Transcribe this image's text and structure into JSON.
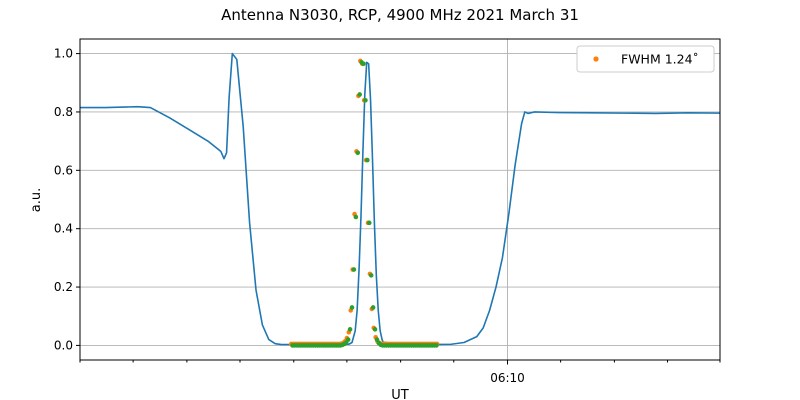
{
  "chart_data": {
    "type": "line",
    "title": "Antenna N3030, RCP, 4900 MHz 2021 March 31",
    "xlabel": "UT",
    "ylabel": "a.u.",
    "xlim": [
      0,
      100
    ],
    "ylim": [
      -0.05,
      1.05
    ],
    "yticks": [
      0.0,
      0.2,
      0.4,
      0.6,
      0.8,
      1.0
    ],
    "ytick_labels": [
      "0.0",
      "0.2",
      "0.4",
      "0.6",
      "0.8",
      "1.0"
    ],
    "xticks_major": [
      {
        "x": 66.8,
        "label": "06:10"
      }
    ],
    "xticks_minor": [
      0,
      8.3,
      16.7,
      25,
      33.4,
      41.7,
      50.1,
      58.4,
      75.1,
      83.5,
      91.8,
      100
    ],
    "grid": true,
    "legend": {
      "position": "top-right",
      "entries": [
        "FWHM 1.24$^\\circ$"
      ]
    },
    "legend_display": [
      "FWHM 1.24˚"
    ],
    "colors": {
      "line": "#1f77b4",
      "points_orange": "#ff7f0e",
      "points_green": "#2ca02c",
      "grid": "#b0b0b0"
    },
    "series": [
      {
        "kind": "line",
        "x": [
          0,
          4,
          9,
          11,
          14,
          17,
          20,
          22,
          22.5,
          22.9,
          23.3,
          23.8,
          24.5,
          25.5,
          26.5,
          27.5,
          28.5,
          29.5,
          30.5,
          31.5,
          32.5,
          34,
          36,
          38,
          40,
          41,
          42,
          42.5,
          43,
          43.3,
          43.6,
          43.9,
          44.2,
          44.5,
          44.8,
          45.1,
          45.4,
          45.7,
          46,
          46.3,
          46.6,
          46.9,
          47.2,
          47.5,
          47.8,
          48.1,
          48.4,
          49,
          50,
          55,
          58,
          60,
          62,
          63,
          64,
          65,
          66,
          67,
          68,
          69,
          69.5,
          70,
          71,
          75,
          80,
          85,
          90,
          95,
          100
        ],
        "y": [
          0.815,
          0.815,
          0.818,
          0.815,
          0.78,
          0.74,
          0.7,
          0.665,
          0.64,
          0.66,
          0.85,
          1.0,
          0.98,
          0.75,
          0.42,
          0.19,
          0.07,
          0.02,
          0.006,
          0.003,
          0.003,
          0.003,
          0.003,
          0.003,
          0.003,
          0.003,
          0.004,
          0.01,
          0.05,
          0.12,
          0.26,
          0.44,
          0.66,
          0.86,
          0.97,
          0.965,
          0.84,
          0.64,
          0.42,
          0.24,
          0.12,
          0.05,
          0.02,
          0.005,
          0.003,
          0.003,
          0.003,
          0.003,
          0.003,
          0.003,
          0.004,
          0.01,
          0.03,
          0.06,
          0.12,
          0.2,
          0.3,
          0.45,
          0.62,
          0.76,
          0.8,
          0.795,
          0.8,
          0.798,
          0.797,
          0.796,
          0.795,
          0.797,
          0.796
        ]
      },
      {
        "kind": "points",
        "name": "FWHM 1.24˚",
        "x": [
          33.0,
          33.3,
          33.6,
          33.9,
          34.2,
          34.5,
          34.8,
          35.1,
          35.4,
          35.7,
          36.0,
          36.3,
          36.6,
          36.9,
          37.2,
          37.5,
          37.8,
          38.1,
          38.4,
          38.7,
          39.0,
          39.3,
          39.6,
          39.9,
          40.2,
          40.5,
          40.8,
          41.1,
          41.4,
          41.7,
          42.0,
          42.3,
          42.6,
          42.9,
          43.2,
          43.5,
          43.8,
          44.1,
          44.4,
          44.7,
          45.0,
          45.3,
          45.6,
          45.9,
          46.2,
          46.5,
          46.8,
          47.1,
          47.4,
          47.7,
          48.0,
          48.3,
          48.6,
          48.9,
          49.2,
          49.5,
          49.8,
          50.1,
          50.4,
          50.7,
          51.0,
          51.3,
          51.6,
          51.9,
          52.2,
          52.5,
          52.8,
          53.1,
          53.4,
          53.7,
          54.0,
          54.3,
          54.6,
          54.9,
          55.2,
          55.5,
          55.8
        ],
        "y": [
          0.005,
          0.005,
          0.005,
          0.005,
          0.005,
          0.005,
          0.005,
          0.005,
          0.005,
          0.005,
          0.005,
          0.005,
          0.005,
          0.005,
          0.005,
          0.005,
          0.005,
          0.005,
          0.005,
          0.005,
          0.005,
          0.005,
          0.005,
          0.005,
          0.005,
          0.005,
          0.006,
          0.008,
          0.014,
          0.025,
          0.045,
          0.12,
          0.26,
          0.45,
          0.665,
          0.855,
          0.975,
          0.965,
          0.84,
          0.635,
          0.42,
          0.245,
          0.125,
          0.06,
          0.028,
          0.013,
          0.008,
          0.006,
          0.006,
          0.006,
          0.005,
          0.005,
          0.005,
          0.005,
          0.005,
          0.005,
          0.005,
          0.005,
          0.005,
          0.005,
          0.005,
          0.005,
          0.005,
          0.005,
          0.005,
          0.005,
          0.005,
          0.005,
          0.005,
          0.005,
          0.005,
          0.005,
          0.005,
          0.005,
          0.005,
          0.005,
          0.005
        ]
      },
      {
        "kind": "points",
        "x": [
          33.2,
          33.5,
          33.8,
          34.1,
          34.4,
          34.7,
          35.0,
          35.3,
          35.6,
          35.9,
          36.2,
          36.5,
          36.8,
          37.1,
          37.4,
          37.7,
          38.0,
          38.3,
          38.6,
          38.9,
          39.2,
          39.5,
          39.8,
          40.1,
          40.4,
          40.7,
          41.0,
          41.3,
          41.6,
          41.9,
          42.2,
          42.5,
          42.8,
          43.1,
          43.4,
          43.7,
          44.0,
          44.3,
          44.6,
          44.9,
          45.2,
          45.5,
          45.8,
          46.1,
          46.4,
          46.7,
          47.0,
          47.3,
          47.6,
          47.9,
          48.2,
          48.5,
          48.8,
          49.1,
          49.4,
          49.7,
          50.0,
          50.3,
          50.6,
          50.9,
          51.2,
          51.5,
          51.8,
          52.1,
          52.4,
          52.7,
          53.0,
          53.3,
          53.6,
          53.9,
          54.2,
          54.5,
          54.8,
          55.1,
          55.4,
          55.7
        ],
        "y": [
          0.0,
          0.0,
          0.0,
          0.0,
          0.0,
          0.0,
          0.0,
          0.0,
          0.0,
          0.0,
          0.0,
          0.0,
          0.0,
          0.0,
          0.0,
          0.0,
          0.0,
          0.0,
          0.0,
          0.0,
          0.0,
          0.0,
          0.0,
          0.0,
          0.0,
          0.0,
          0.002,
          0.005,
          0.01,
          0.02,
          0.055,
          0.13,
          0.26,
          0.44,
          0.66,
          0.86,
          0.97,
          0.965,
          0.84,
          0.635,
          0.42,
          0.24,
          0.13,
          0.055,
          0.02,
          0.008,
          0.002,
          0.0,
          0.0,
          0.0,
          0.0,
          0.0,
          0.0,
          0.0,
          0.0,
          0.0,
          0.0,
          0.0,
          0.0,
          0.0,
          0.0,
          0.0,
          0.0,
          0.0,
          0.0,
          0.0,
          0.0,
          0.0,
          0.0,
          0.0,
          0.0,
          0.0,
          0.0,
          0.0,
          0.0,
          0.0
        ]
      }
    ]
  }
}
